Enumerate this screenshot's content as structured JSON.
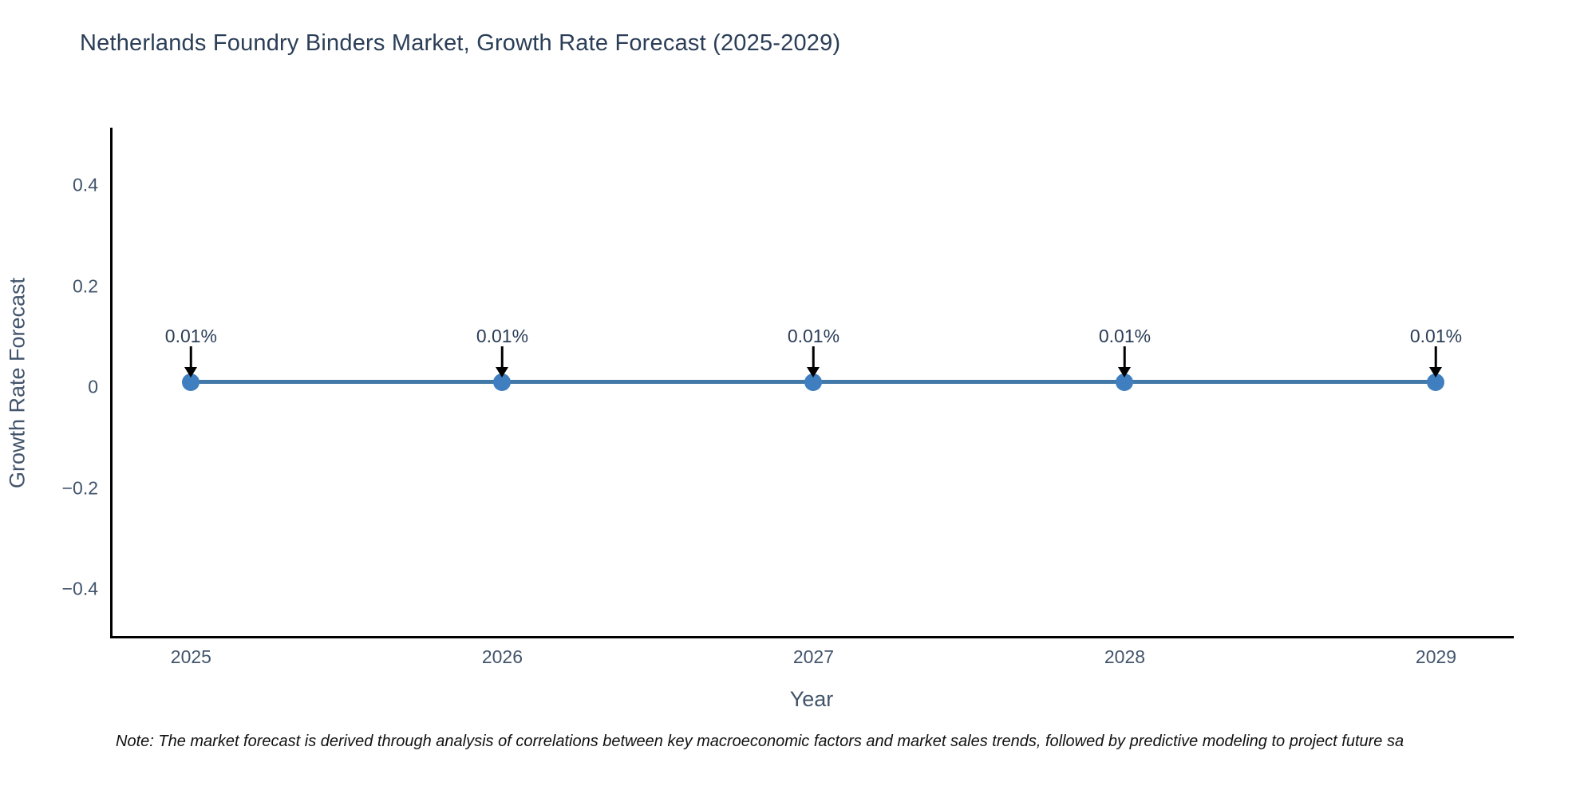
{
  "chart_data": {
    "type": "line",
    "title": "Netherlands Foundry Binders Market, Growth Rate Forecast (2025-2029)",
    "xlabel": "Year",
    "ylabel": "Growth Rate Forecast",
    "x": [
      2025,
      2026,
      2027,
      2028,
      2029
    ],
    "series": [
      {
        "name": "Growth Rate Forecast",
        "values": [
          0.01,
          0.01,
          0.01,
          0.01,
          0.01
        ],
        "point_labels": [
          "0.01%",
          "0.01%",
          "0.01%",
          "0.01%",
          "0.01%"
        ]
      }
    ],
    "xlim": [
      2024.74,
      2029.25
    ],
    "ylim": [
      -0.498,
      0.514
    ],
    "x_ticks": [
      {
        "value": 2025,
        "label": "2025"
      },
      {
        "value": 2026,
        "label": "2026"
      },
      {
        "value": 2027,
        "label": "2027"
      },
      {
        "value": 2028,
        "label": "2028"
      },
      {
        "value": 2029,
        "label": "2029"
      }
    ],
    "y_ticks": [
      {
        "value": 0.4,
        "label": "0.4"
      },
      {
        "value": 0.2,
        "label": "0.2"
      },
      {
        "value": 0,
        "label": "0"
      },
      {
        "value": -0.2,
        "label": "−0.2"
      },
      {
        "value": -0.4,
        "label": "−0.4"
      }
    ],
    "grid": false,
    "legend": false,
    "annotation_arrow": "down-arrow",
    "colors": {
      "title": "#2b3e57",
      "tick": "#42546b",
      "axis": "#000000",
      "line": "#4278a8",
      "marker": "#3f7fc0",
      "arrow": "#000000",
      "note": "#111111",
      "bg": "#ffffff"
    }
  },
  "note": {
    "text": "Note: The market forecast is derived through analysis of correlations between key macroeconomic factors and market sales trends, followed by predictive modeling to project future sa"
  }
}
